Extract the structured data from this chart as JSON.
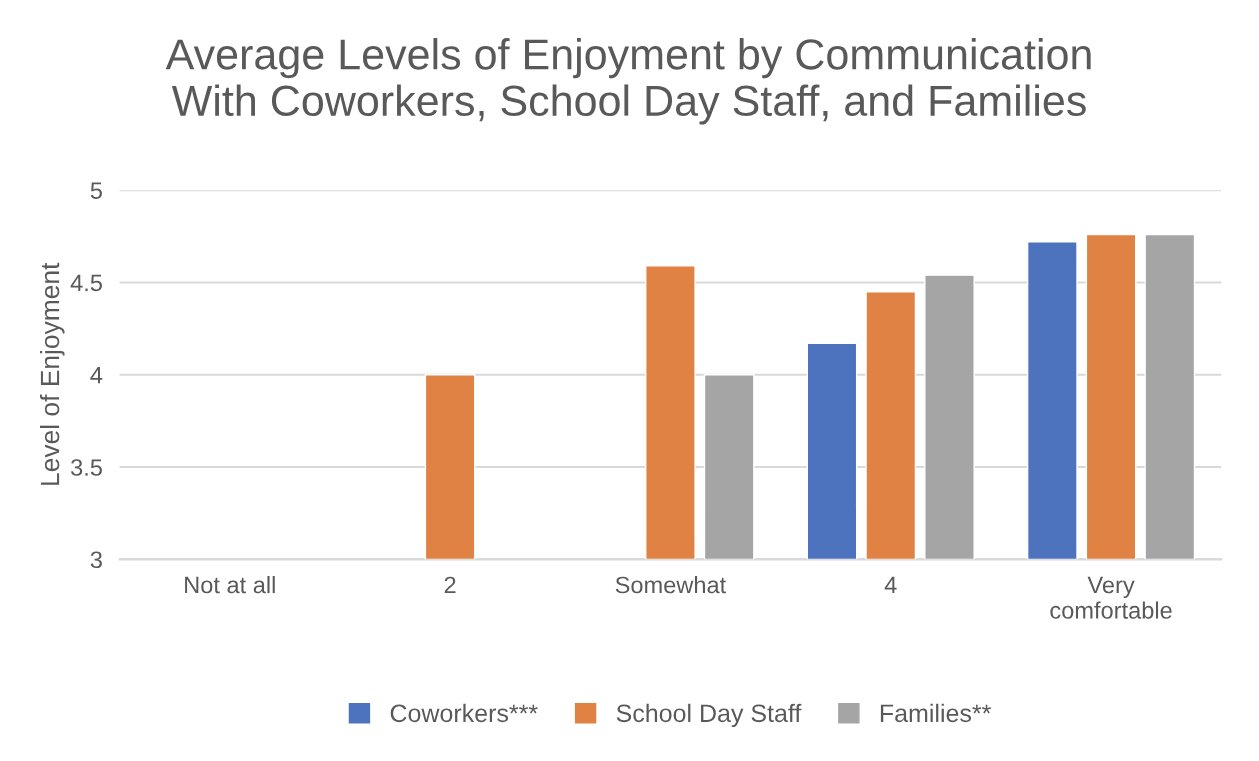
{
  "chart_data": {
    "type": "bar",
    "title": "Average Levels of Enjoyment by Communication\nWith Coworkers, School Day Staff, and Families",
    "ylabel": "Level of Enjoyment",
    "categories": [
      "Not at all",
      "2",
      "Somewhat",
      "4",
      "Very\ncomfortable"
    ],
    "series": [
      {
        "name": "Coworkers***",
        "color": "#4e73be",
        "values": [
          null,
          null,
          null,
          4.17,
          4.72
        ]
      },
      {
        "name": "School Day Staff",
        "color": "#df8243",
        "values": [
          null,
          4.0,
          4.59,
          4.45,
          4.76
        ]
      },
      {
        "name": "Families**",
        "color": "#a5a5a5",
        "values": [
          null,
          null,
          4.0,
          4.54,
          4.76
        ]
      }
    ],
    "ylim": [
      3,
      5
    ],
    "yticks": [
      3,
      3.5,
      4,
      4.5,
      5
    ],
    "grid": "y",
    "legend": "bottom"
  }
}
